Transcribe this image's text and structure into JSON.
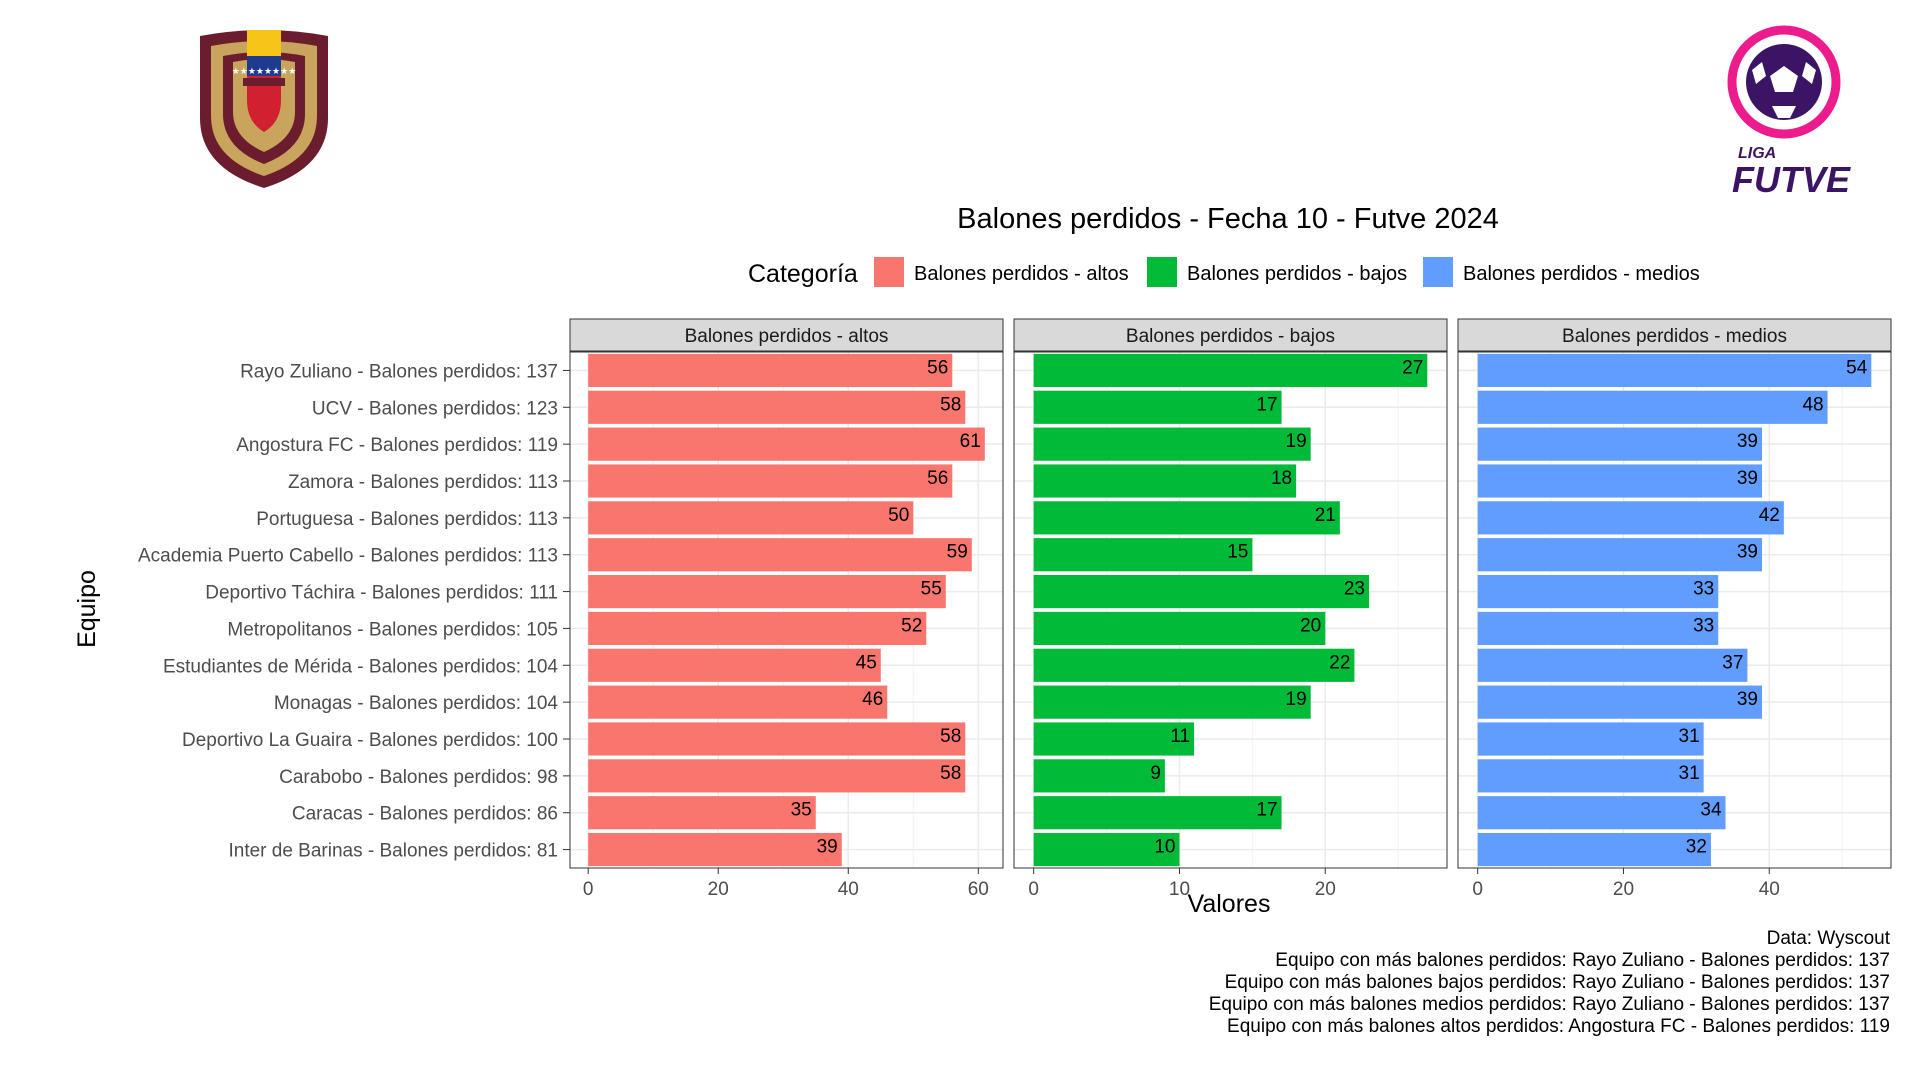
{
  "chart_data": {
    "type": "bar",
    "orientation": "horizontal",
    "title": "Balones perdidos - Fecha 10 - Futve 2024",
    "legend_title": "Categoría",
    "legend_position": "top",
    "xlabel": "Valores",
    "ylabel": "Equipo",
    "grid": true,
    "categories": [
      "Rayo Zuliano - Balones perdidos: 137",
      "UCV - Balones perdidos: 123",
      "Angostura FC - Balones perdidos: 119",
      "Zamora - Balones perdidos: 113",
      "Portuguesa - Balones perdidos: 113",
      "Academia Puerto Cabello - Balones perdidos: 113",
      "Deportivo Táchira - Balones perdidos: 111",
      "Metropolitanos - Balones perdidos: 105",
      "Estudiantes de Mérida - Balones perdidos: 104",
      "Monagas - Balones perdidos: 104",
      "Deportivo La Guaira - Balones perdidos: 100",
      "Carabobo - Balones perdidos: 98",
      "Caracas - Balones perdidos: 86",
      "Inter de Barinas - Balones perdidos: 81"
    ],
    "series": [
      {
        "name": "Balones perdidos - altos",
        "color": "#F8766D",
        "values": [
          56,
          58,
          61,
          56,
          50,
          59,
          55,
          52,
          45,
          46,
          58,
          58,
          35,
          39
        ],
        "xlim": [
          -2.8,
          63.8
        ],
        "ticks": [
          0,
          20,
          40,
          60
        ]
      },
      {
        "name": "Balones perdidos - bajos",
        "color": "#00BA38",
        "values": [
          27,
          17,
          19,
          18,
          21,
          15,
          23,
          20,
          22,
          19,
          11,
          9,
          17,
          10
        ],
        "xlim": [
          -1.35,
          28.35
        ],
        "ticks": [
          0,
          10,
          20
        ]
      },
      {
        "name": "Balones perdidos - medios",
        "color": "#619CFF",
        "values": [
          54,
          48,
          39,
          39,
          42,
          39,
          33,
          33,
          37,
          39,
          31,
          31,
          34,
          32
        ],
        "xlim": [
          -2.7,
          56.7
        ],
        "ticks": [
          0,
          20,
          40
        ]
      }
    ],
    "caption": [
      "Data: Wyscout",
      "Equipo con más balones perdidos: Rayo Zuliano - Balones perdidos: 137",
      "Equipo con más balones bajos perdidos: Rayo Zuliano - Balones perdidos: 137",
      "Equipo con más balones medios perdidos: Rayo Zuliano - Balones perdidos: 137",
      "Equipo con más balones altos perdidos: Angostura FC - Balones perdidos: 119"
    ]
  },
  "logos": {
    "left": {
      "name": "fvf-crest"
    },
    "right": {
      "name": "liga-futve-logo",
      "text_top": "LIGA",
      "text_main": "FUTVE"
    }
  }
}
